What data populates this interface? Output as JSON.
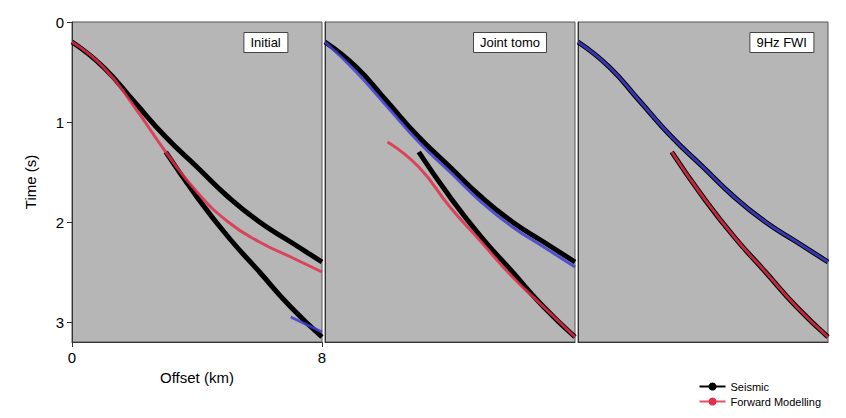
{
  "chart_data": [
    {
      "type": "line",
      "title": "Initial",
      "x_label": "Offset (km)",
      "y_label": "Time (s)",
      "x": [
        0,
        1,
        2,
        3,
        4,
        5,
        6,
        7,
        8
      ],
      "xlim": [
        0,
        8
      ],
      "xticks": [
        0,
        8
      ],
      "ylim": [
        0,
        3.2
      ],
      "yticks": [
        0,
        1,
        2,
        3
      ],
      "series": [
        {
          "name": "Seismic",
          "color": "#000000",
          "values": [
            0.2,
            0.45,
            0.8,
            1.15,
            1.45,
            1.75,
            2.0,
            2.2,
            2.4
          ]
        },
        {
          "name": "Seismic",
          "color": "#000000",
          "values": [
            null,
            null,
            null,
            1.3,
            1.75,
            2.15,
            2.5,
            2.85,
            3.15
          ]
        },
        {
          "name": "Forward Modelling",
          "color": "#e0304a",
          "values": [
            0.2,
            0.45,
            0.85,
            1.3,
            1.7,
            2.0,
            2.2,
            2.35,
            2.5
          ]
        },
        {
          "name": "Forward Modelling",
          "color": "#4040d0",
          "values": [
            null,
            null,
            null,
            null,
            null,
            null,
            null,
            2.95,
            3.1
          ]
        }
      ]
    },
    {
      "type": "line",
      "title": "Joint tomo",
      "x": [
        0,
        1,
        2,
        3,
        4,
        5,
        6,
        7,
        8
      ],
      "xlim": [
        0,
        8
      ],
      "ylim": [
        0,
        3.2
      ],
      "tick_labels": false,
      "series": [
        {
          "name": "Seismic",
          "color": "#000000",
          "values": [
            0.2,
            0.45,
            0.8,
            1.15,
            1.45,
            1.75,
            2.0,
            2.2,
            2.4
          ]
        },
        {
          "name": "Seismic",
          "color": "#000000",
          "values": [
            null,
            null,
            null,
            1.3,
            1.75,
            2.15,
            2.5,
            2.85,
            3.15
          ]
        },
        {
          "name": "Forward Modelling",
          "color": "#4040d0",
          "values": [
            0.2,
            0.5,
            0.85,
            1.2,
            1.5,
            1.8,
            2.05,
            2.25,
            2.45
          ]
        },
        {
          "name": "Forward Modelling",
          "color": "#e0304a",
          "values": [
            null,
            null,
            1.2,
            1.45,
            1.85,
            2.2,
            2.55,
            2.85,
            3.15
          ]
        }
      ]
    },
    {
      "type": "line",
      "title": "9Hz FWI",
      "x": [
        0,
        1,
        2,
        3,
        4,
        5,
        6,
        7,
        8
      ],
      "xlim": [
        0,
        8
      ],
      "ylim": [
        0,
        3.2
      ],
      "tick_labels": false,
      "legend": "lower right",
      "series": [
        {
          "name": "Seismic",
          "color": "#000000",
          "values": [
            0.2,
            0.45,
            0.8,
            1.15,
            1.45,
            1.75,
            2.0,
            2.2,
            2.4
          ]
        },
        {
          "name": "Seismic",
          "color": "#000000",
          "values": [
            null,
            null,
            null,
            1.3,
            1.75,
            2.15,
            2.5,
            2.85,
            3.15
          ]
        },
        {
          "name": "Forward Modelling",
          "color": "#4040d0",
          "values": [
            0.2,
            0.45,
            0.8,
            1.15,
            1.45,
            1.75,
            2.0,
            2.2,
            2.4
          ]
        },
        {
          "name": "Forward Modelling",
          "color": "#e0304a",
          "values": [
            null,
            null,
            null,
            1.3,
            1.75,
            2.15,
            2.5,
            2.85,
            3.15
          ]
        }
      ]
    }
  ]
}
